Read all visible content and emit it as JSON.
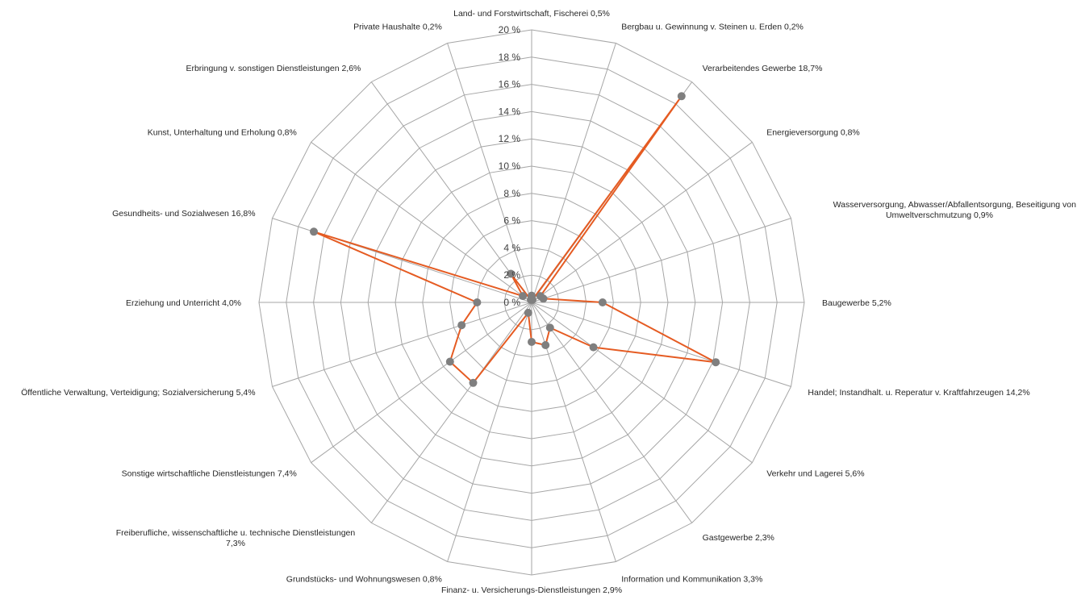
{
  "chart_data": {
    "type": "radar",
    "ylim": [
      0,
      20
    ],
    "ticks": [
      "0 %",
      "2 %",
      "4 %",
      "6 %",
      "8 %",
      "10 %",
      "12 %",
      "14 %",
      "16 %",
      "18 %",
      "20 %"
    ],
    "tick_values": [
      0,
      2,
      4,
      6,
      8,
      10,
      12,
      14,
      16,
      18,
      20
    ],
    "grid": true,
    "legend": "none",
    "colors": {
      "series": "#e55b22",
      "points": "#7f7f7f",
      "grid": "#a6a6a6"
    },
    "categories": [
      "Land- und Forstwirtschaft, Fischerei 0,5%",
      "Bergbau u. Gewinnung v. Steinen u. Erden 0,2%",
      "Verarbeitendes Gewerbe 18,7%",
      "Energieversorgung 0,8%",
      "Wasserversorgung, Abwasser/Abfallentsorgung, Beseitigung von Umweltverschmutzung 0,9%",
      "Baugewerbe 5,2%",
      "Handel; Instandhalt. u. Reperatur v. Kraftfahrzeugen 14,2%",
      "Verkehr und Lagerei 5,6%",
      "Gastgewerbe 2,3%",
      "Information und Kommunikation 3,3%",
      "Finanz- u. Versicherungs-Dienstleistungen 2,9%",
      "Grundstücks- und Wohnungswesen 0,8%",
      "Freiberufliche, wissenschaftliche u. technische Dienstleistungen 7,3%",
      "Sonstige wirtschaftliche Dienstleistungen 7,4%",
      "Öffentliche Verwaltung, Verteidigung; Sozialversicherung 5,4%",
      "Erziehung und Unterricht 4,0%",
      "Gesundheits- und Sozialwesen 16,8%",
      "Kunst, Unterhaltung und Erholung 0,8%",
      "Erbringung v. sonstigen Dienstleistungen 2,6%",
      "Private Haushalte 0,2%"
    ],
    "series": [
      {
        "values": [
          0.5,
          0.2,
          18.7,
          0.8,
          0.9,
          5.2,
          14.2,
          5.6,
          2.3,
          3.3,
          2.9,
          0.8,
          7.3,
          7.4,
          5.4,
          4.0,
          16.8,
          0.8,
          2.6,
          0.2
        ]
      }
    ]
  }
}
